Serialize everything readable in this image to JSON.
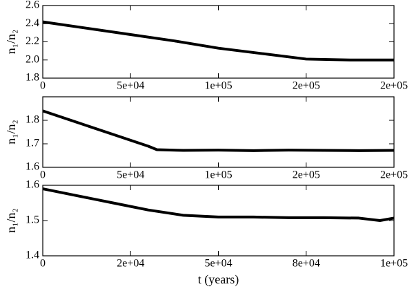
{
  "chart_data": [
    {
      "type": "line",
      "ylabel": "n₁/n₂",
      "color": "#000000",
      "x": [
        0,
        25000,
        50000,
        75000,
        100000,
        125000,
        150000,
        175000,
        200000
      ],
      "values": [
        2.42,
        2.35,
        2.28,
        2.21,
        2.13,
        2.07,
        2.01,
        2.0,
        2.0
      ],
      "xlim": [
        0,
        200000
      ],
      "xticks": [
        0,
        {
          "value": 50000,
          "label": "5e+04"
        },
        {
          "value": 100000,
          "label": "1e+05"
        },
        {
          "value": 150000,
          "label": "2e+05"
        },
        {
          "value": 200000,
          "label": "2e+05"
        }
      ],
      "ylim": [
        1.8,
        2.6
      ],
      "yticks": [
        1.8,
        {
          "value": 2,
          "label": "2.0"
        },
        2.2,
        2.4,
        2.6
      ],
      "grid": false
    },
    {
      "type": "line",
      "ylabel": "n₁/n₂",
      "color": "#000000",
      "x": [
        0,
        20000,
        40000,
        60000,
        65000,
        80000,
        100000,
        120000,
        140000,
        160000,
        180000,
        200000
      ],
      "values": [
        1.84,
        1.79,
        1.74,
        1.69,
        1.675,
        1.672,
        1.673,
        1.671,
        1.673,
        1.672,
        1.671,
        1.672
      ],
      "xlim": [
        0,
        200000
      ],
      "xticks": [
        0,
        {
          "value": 50000,
          "label": "5e+04"
        },
        {
          "value": 100000,
          "label": "1e+05"
        },
        {
          "value": 150000,
          "label": "2e+05"
        },
        {
          "value": 200000,
          "label": "2e+05"
        }
      ],
      "ylim": [
        1.6,
        1.9
      ],
      "yticks": [
        1.6,
        1.7,
        1.8
      ],
      "grid": false
    },
    {
      "type": "line",
      "ylabel": "n₁/n₂",
      "xlabel": "t (years)",
      "color": "#000000",
      "x": [
        0,
        10000,
        20000,
        30000,
        40000,
        50000,
        60000,
        70000,
        80000,
        90000,
        96000,
        100000
      ],
      "values": [
        1.59,
        1.57,
        1.55,
        1.53,
        1.515,
        1.51,
        1.51,
        1.508,
        1.508,
        1.507,
        1.5,
        1.507
      ],
      "xlim": [
        0,
        100000
      ],
      "xticks": [
        0,
        {
          "value": 25000,
          "label": "2e+04"
        },
        {
          "value": 50000,
          "label": "5e+04"
        },
        {
          "value": 75000,
          "label": "8e+04"
        },
        {
          "value": 100000,
          "label": "1e+05"
        }
      ],
      "ylim": [
        1.4,
        1.6
      ],
      "yticks": [
        1.4,
        1.5,
        1.6
      ],
      "grid": false
    }
  ]
}
